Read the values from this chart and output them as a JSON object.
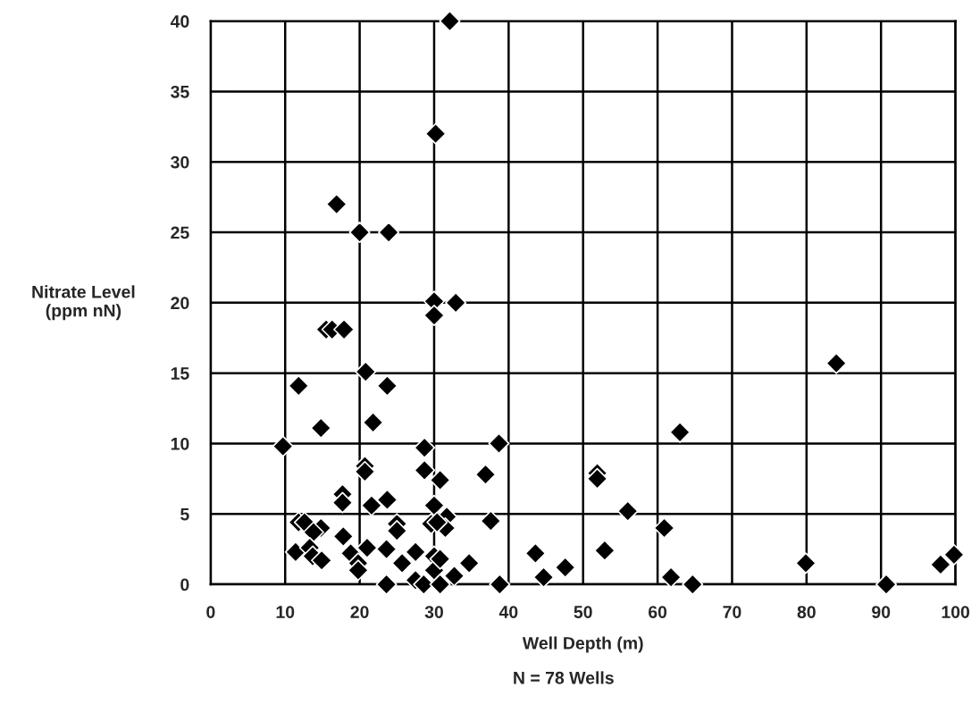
{
  "chart_data": {
    "type": "scatter",
    "xlabel": "Well Depth (m)",
    "ylabel": "Nitrate Level\n(ppm nN)",
    "annotations": [
      "N = 78 Wells"
    ],
    "marker": "diamond",
    "grid": true,
    "color": "#000000",
    "xlim": [
      0,
      100
    ],
    "ylim": [
      0,
      40
    ],
    "xticks": [
      0,
      10,
      20,
      30,
      40,
      50,
      60,
      70,
      80,
      90,
      100
    ],
    "yticks": [
      0,
      5,
      10,
      15,
      20,
      25,
      30,
      35,
      40
    ],
    "x": [
      32.1,
      30.2,
      16.9,
      20,
      23.9,
      30,
      32.9,
      30,
      15.5,
      16.3,
      17.9,
      20.8,
      11.8,
      23.7,
      84,
      21.8,
      14.8,
      9.7,
      38.7,
      63,
      28.7,
      28.7,
      30.8,
      20.7,
      20.7,
      36.9,
      51.9,
      51.9,
      17.7,
      17.7,
      23.7,
      21.6,
      30,
      56,
      11.8,
      12.6,
      25,
      25,
      29.6,
      31.7,
      31.5,
      14.8,
      13.8,
      37.6,
      60.9,
      17.8,
      11.4,
      13.3,
      13.7,
      14.9,
      18.8,
      19.8,
      19.8,
      23.6,
      23.6,
      25.7,
      27.5,
      27.5,
      28.6,
      30,
      30,
      30.8,
      30.8,
      32.7,
      34.7,
      38.8,
      43.6,
      44.7,
      47.6,
      52.9,
      61.8,
      64.7,
      79.9,
      90.7,
      98,
      99.8,
      30.4,
      21
    ],
    "values": [
      40,
      32,
      27,
      25,
      25,
      20.1,
      20,
      19.1,
      18.1,
      18.1,
      18.1,
      15.1,
      14.1,
      14.1,
      15.7,
      11.5,
      11.1,
      9.8,
      10,
      10.8,
      9.7,
      8.1,
      7.4,
      8.4,
      8,
      7.8,
      7.9,
      7.5,
      6.4,
      5.8,
      6,
      5.6,
      5.6,
      5.2,
      4.4,
      4.4,
      4.3,
      3.8,
      4.3,
      4.8,
      4,
      4,
      3.7,
      4.5,
      4,
      3.4,
      2.3,
      2.6,
      2,
      1.7,
      2.2,
      1.5,
      1,
      2.5,
      0,
      1.5,
      2.3,
      0.3,
      0,
      2,
      1,
      1.8,
      0,
      0.6,
      1.5,
      0,
      2.2,
      0.5,
      1.2,
      2.4,
      0.5,
      0,
      1.5,
      0,
      1.4,
      2.1,
      4.4,
      2.6
    ]
  }
}
